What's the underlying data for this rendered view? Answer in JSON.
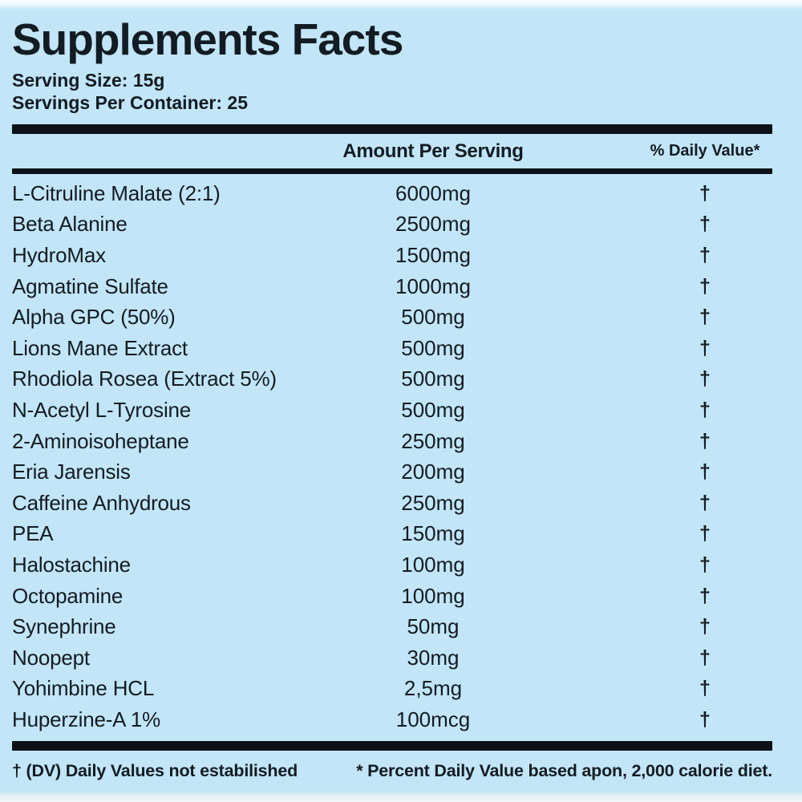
{
  "label": {
    "title": "Supplements Facts",
    "serving_size": "Serving Size: 15g",
    "servings_per_container": "Servings Per Container: 25",
    "columns": {
      "amount": "Amount Per Serving",
      "daily_value": "% Daily Value*"
    },
    "rows": [
      {
        "name": "L-Citruline Malate (2:1)",
        "amount": "6000mg",
        "dv": "†"
      },
      {
        "name": "Beta Alanine",
        "amount": "2500mg",
        "dv": "†"
      },
      {
        "name": "HydroMax",
        "amount": "1500mg",
        "dv": "†"
      },
      {
        "name": "Agmatine Sulfate",
        "amount": "1000mg",
        "dv": "†"
      },
      {
        "name": "Alpha GPC (50%)",
        "amount": "500mg",
        "dv": "†"
      },
      {
        "name": "Lions Mane Extract",
        "amount": "500mg",
        "dv": "†"
      },
      {
        "name": "Rhodiola Rosea (Extract 5%)",
        "amount": "500mg",
        "dv": "†"
      },
      {
        "name": "N-Acetyl L-Tyrosine",
        "amount": "500mg",
        "dv": "†"
      },
      {
        "name": "2-Aminoisoheptane",
        "amount": "250mg",
        "dv": "†"
      },
      {
        "name": "Eria Jarensis",
        "amount": "200mg",
        "dv": "†"
      },
      {
        "name": "Caffeine Anhydrous",
        "amount": "250mg",
        "dv": "†"
      },
      {
        "name": "PEA",
        "amount": "150mg",
        "dv": "†"
      },
      {
        "name": "Halostachine",
        "amount": "100mg",
        "dv": "†"
      },
      {
        "name": "Octopamine",
        "amount": "100mg",
        "dv": "†"
      },
      {
        "name": "Synephrine",
        "amount": "50mg",
        "dv": "†"
      },
      {
        "name": "Noopept",
        "amount": "30mg",
        "dv": "†"
      },
      {
        "name": "Yohimbine HCL",
        "amount": "2,5mg",
        "dv": "†"
      },
      {
        "name": "Huperzine-A 1%",
        "amount": "100mcg",
        "dv": "†"
      }
    ],
    "footnotes": {
      "left": "† (DV) Daily Values not estabilished",
      "right": "* Percent Daily Value based apon, 2,000 calorie diet."
    },
    "colors": {
      "background": "#c2e5f7",
      "text": "#131c23",
      "bar": "#0c1218"
    }
  }
}
